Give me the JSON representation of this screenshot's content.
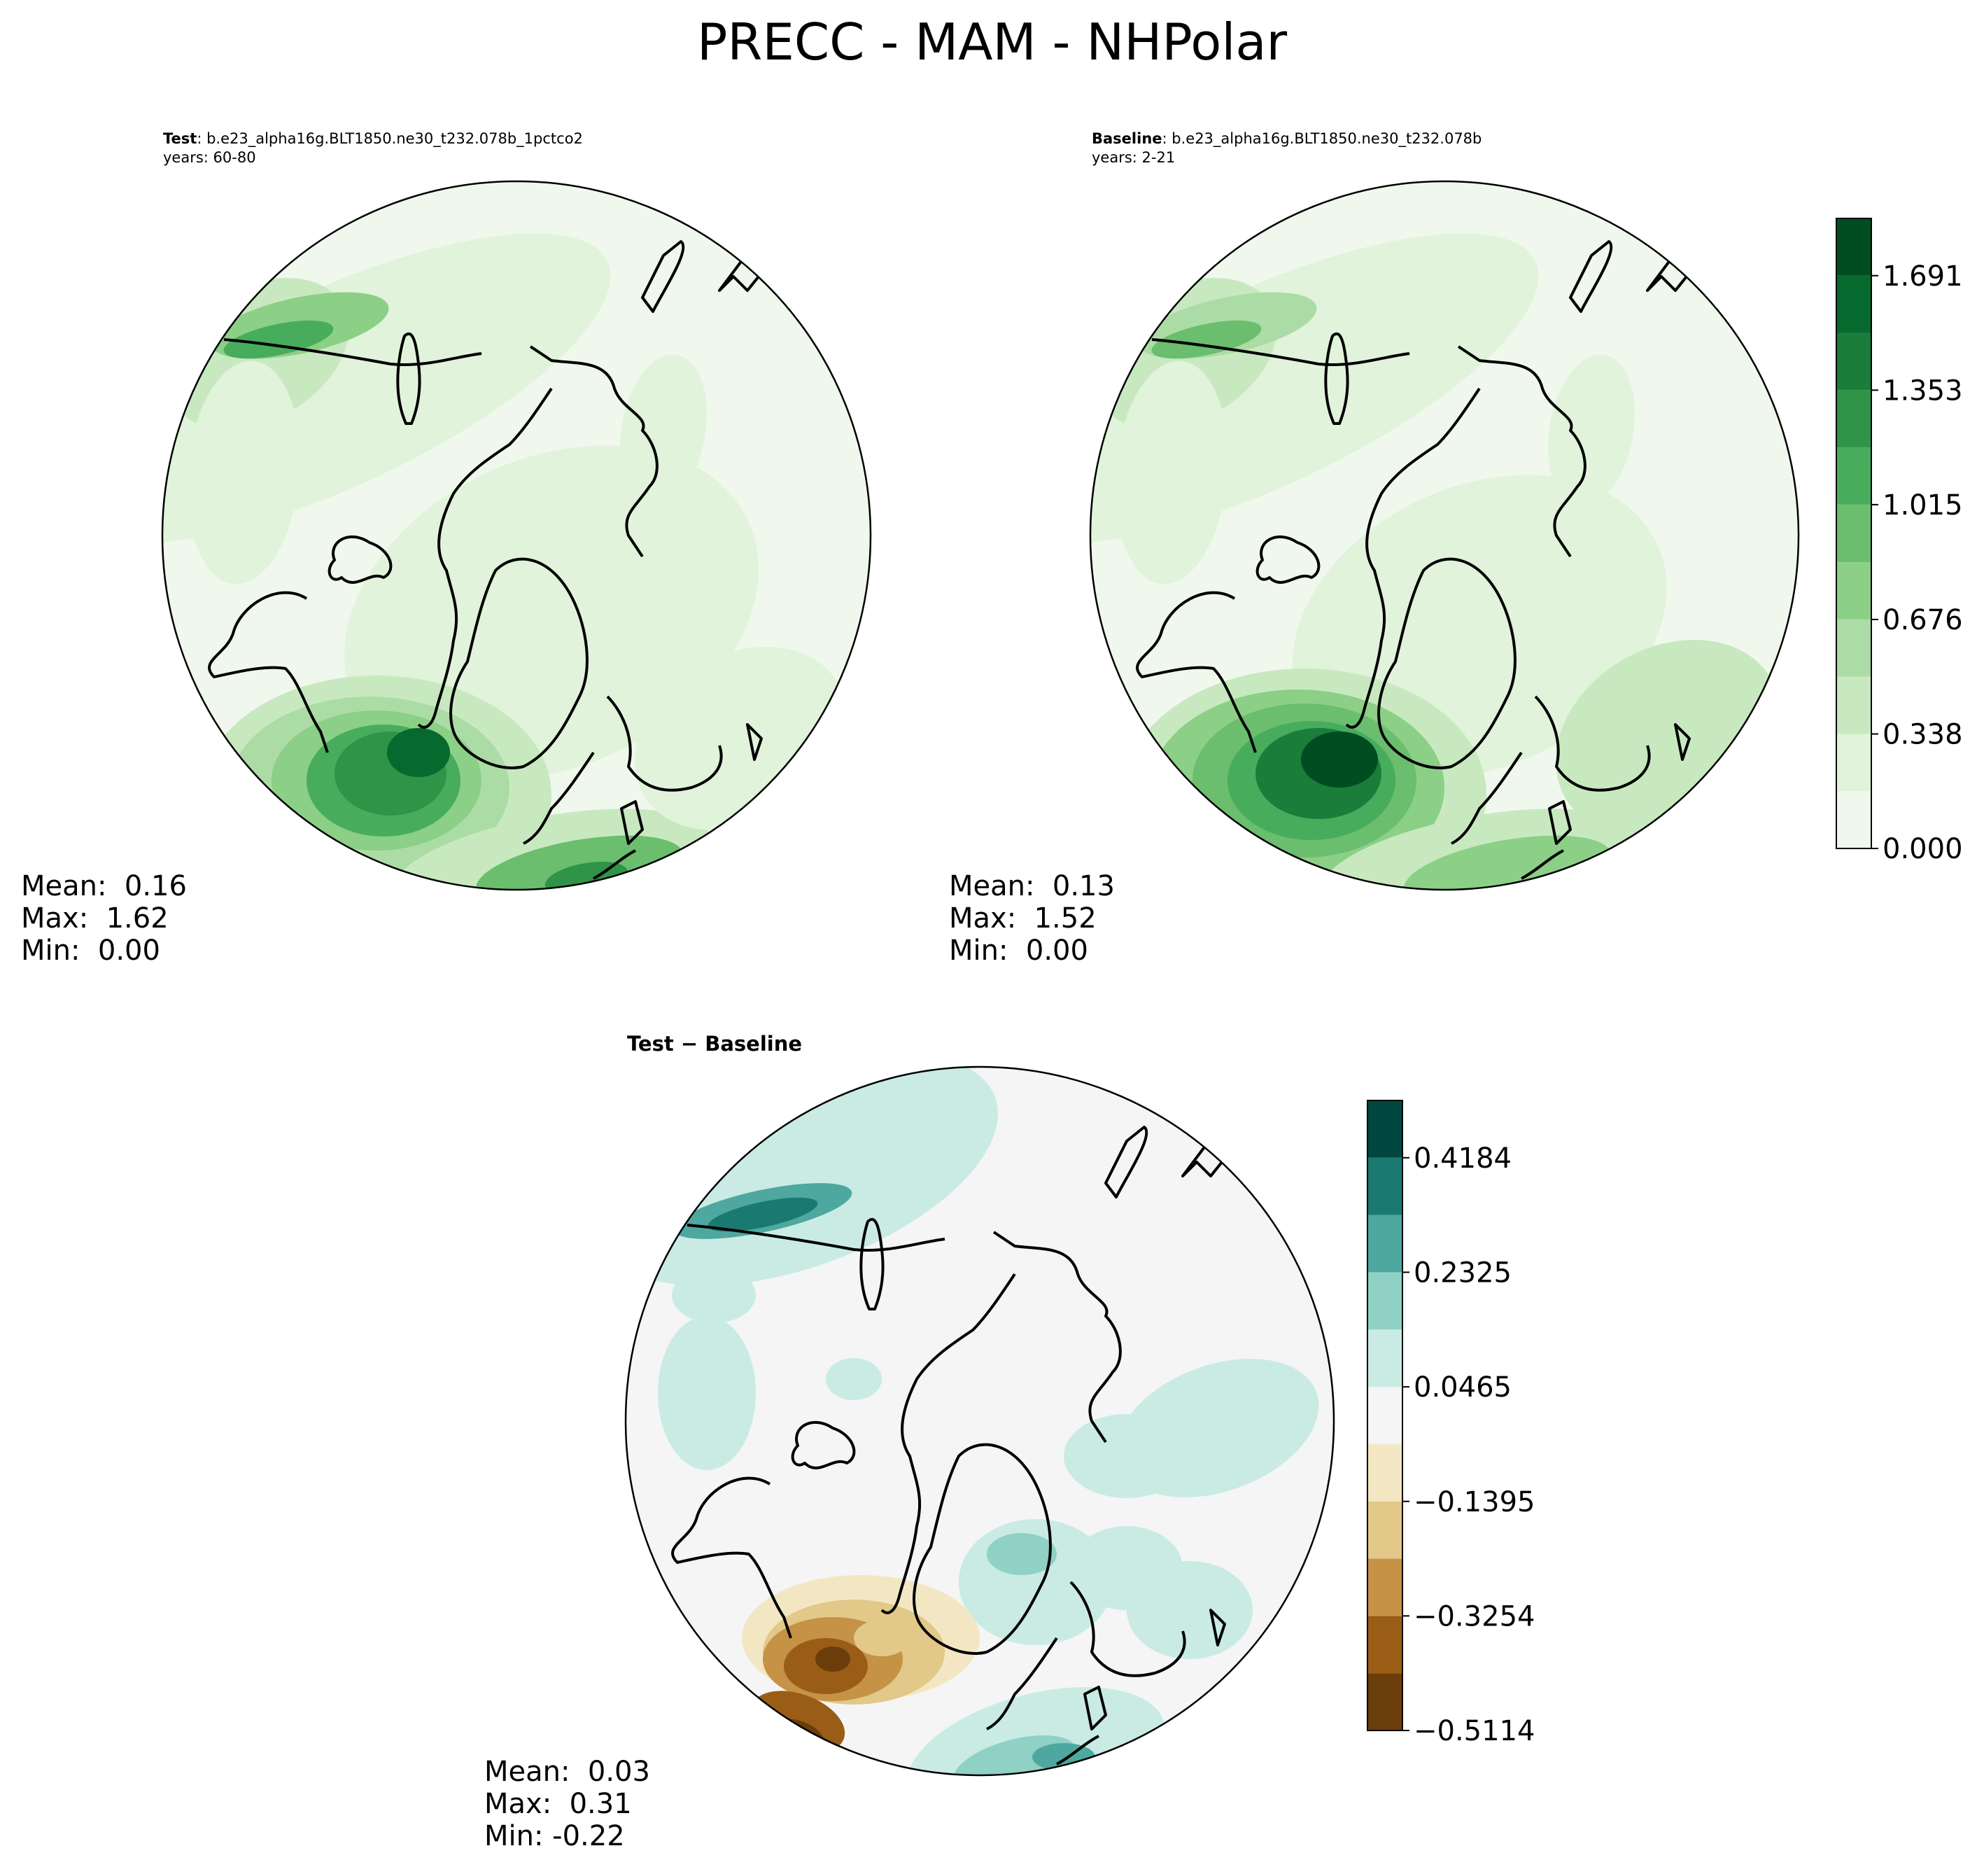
{
  "figure": {
    "title": "PRECC - MAM - NHPolar"
  },
  "test_panel": {
    "label_name": "Test",
    "label_case": ": b.e23_alpha16g.BLT1850.ne30_t232.078b_1pctco2",
    "years": "years: 60-80",
    "stats": {
      "mean": "Mean:  0.16",
      "max": "Max:  1.62",
      "min": "Min:  0.00"
    }
  },
  "baseline_panel": {
    "label_name": "Baseline",
    "label_case": ": b.e23_alpha16g.BLT1850.ne30_t232.078b",
    "years": "years: 2-21",
    "stats": {
      "mean": "Mean:  0.13",
      "max": "Max:  1.52",
      "min": "Min:  0.00"
    }
  },
  "diff_panel": {
    "title": "Test − Baseline",
    "stats": {
      "mean": "Mean:  0.03",
      "max": "Max:  0.31",
      "min": "Min: -0.22"
    }
  },
  "chart_data": [
    {
      "type": "heatmap",
      "projection": "north polar stereographic",
      "panel": "test",
      "colormap": "Greens",
      "levels": [
        0.0,
        0.169,
        0.338,
        0.507,
        0.676,
        0.845,
        1.015,
        1.184,
        1.353,
        1.522,
        1.691,
        1.86
      ],
      "colorbar_ticks": [
        "0.000",
        "0.338",
        "0.676",
        "1.015",
        "1.353",
        "1.691"
      ],
      "mean": 0.16,
      "max": 1.62,
      "min": 0.0
    },
    {
      "type": "heatmap",
      "projection": "north polar stereographic",
      "panel": "baseline",
      "colormap": "Greens",
      "levels": [
        0.0,
        0.169,
        0.338,
        0.507,
        0.676,
        0.845,
        1.015,
        1.184,
        1.353,
        1.522,
        1.691,
        1.86
      ],
      "colorbar_ticks": [
        "0.000",
        "0.338",
        "0.676",
        "1.015",
        "1.353",
        "1.691"
      ],
      "mean": 0.13,
      "max": 1.52,
      "min": 0.0
    },
    {
      "type": "heatmap",
      "projection": "north polar stereographic",
      "panel": "difference",
      "colormap": "BrBG",
      "levels": [
        -0.5114,
        -0.4184,
        -0.3254,
        -0.2325,
        -0.1395,
        -0.0465,
        0.0465,
        0.1395,
        0.2325,
        0.3254,
        0.4184,
        0.5114
      ],
      "colorbar_ticks": [
        "−0.5114",
        "−0.3254",
        "−0.1395",
        "0.0465",
        "0.2325",
        "0.4184"
      ],
      "mean": 0.03,
      "max": 0.31,
      "min": -0.22
    }
  ],
  "colors": {
    "greens": [
      "#f0f8ed",
      "#e1f3db",
      "#c8e9c0",
      "#acdca5",
      "#8ccf86",
      "#6abe6e",
      "#48ac5d",
      "#2f9447",
      "#1a7d3a",
      "#06692d",
      "#004d22"
    ],
    "brbg": [
      "#6b3d0b",
      "#9a5d16",
      "#c69246",
      "#e2c889",
      "#f3e7c3",
      "#f4f5f4",
      "#c9ebe3",
      "#8fd1c4",
      "#4ea89f",
      "#1a7a72",
      "#00483f"
    ],
    "coast": "#000000"
  }
}
